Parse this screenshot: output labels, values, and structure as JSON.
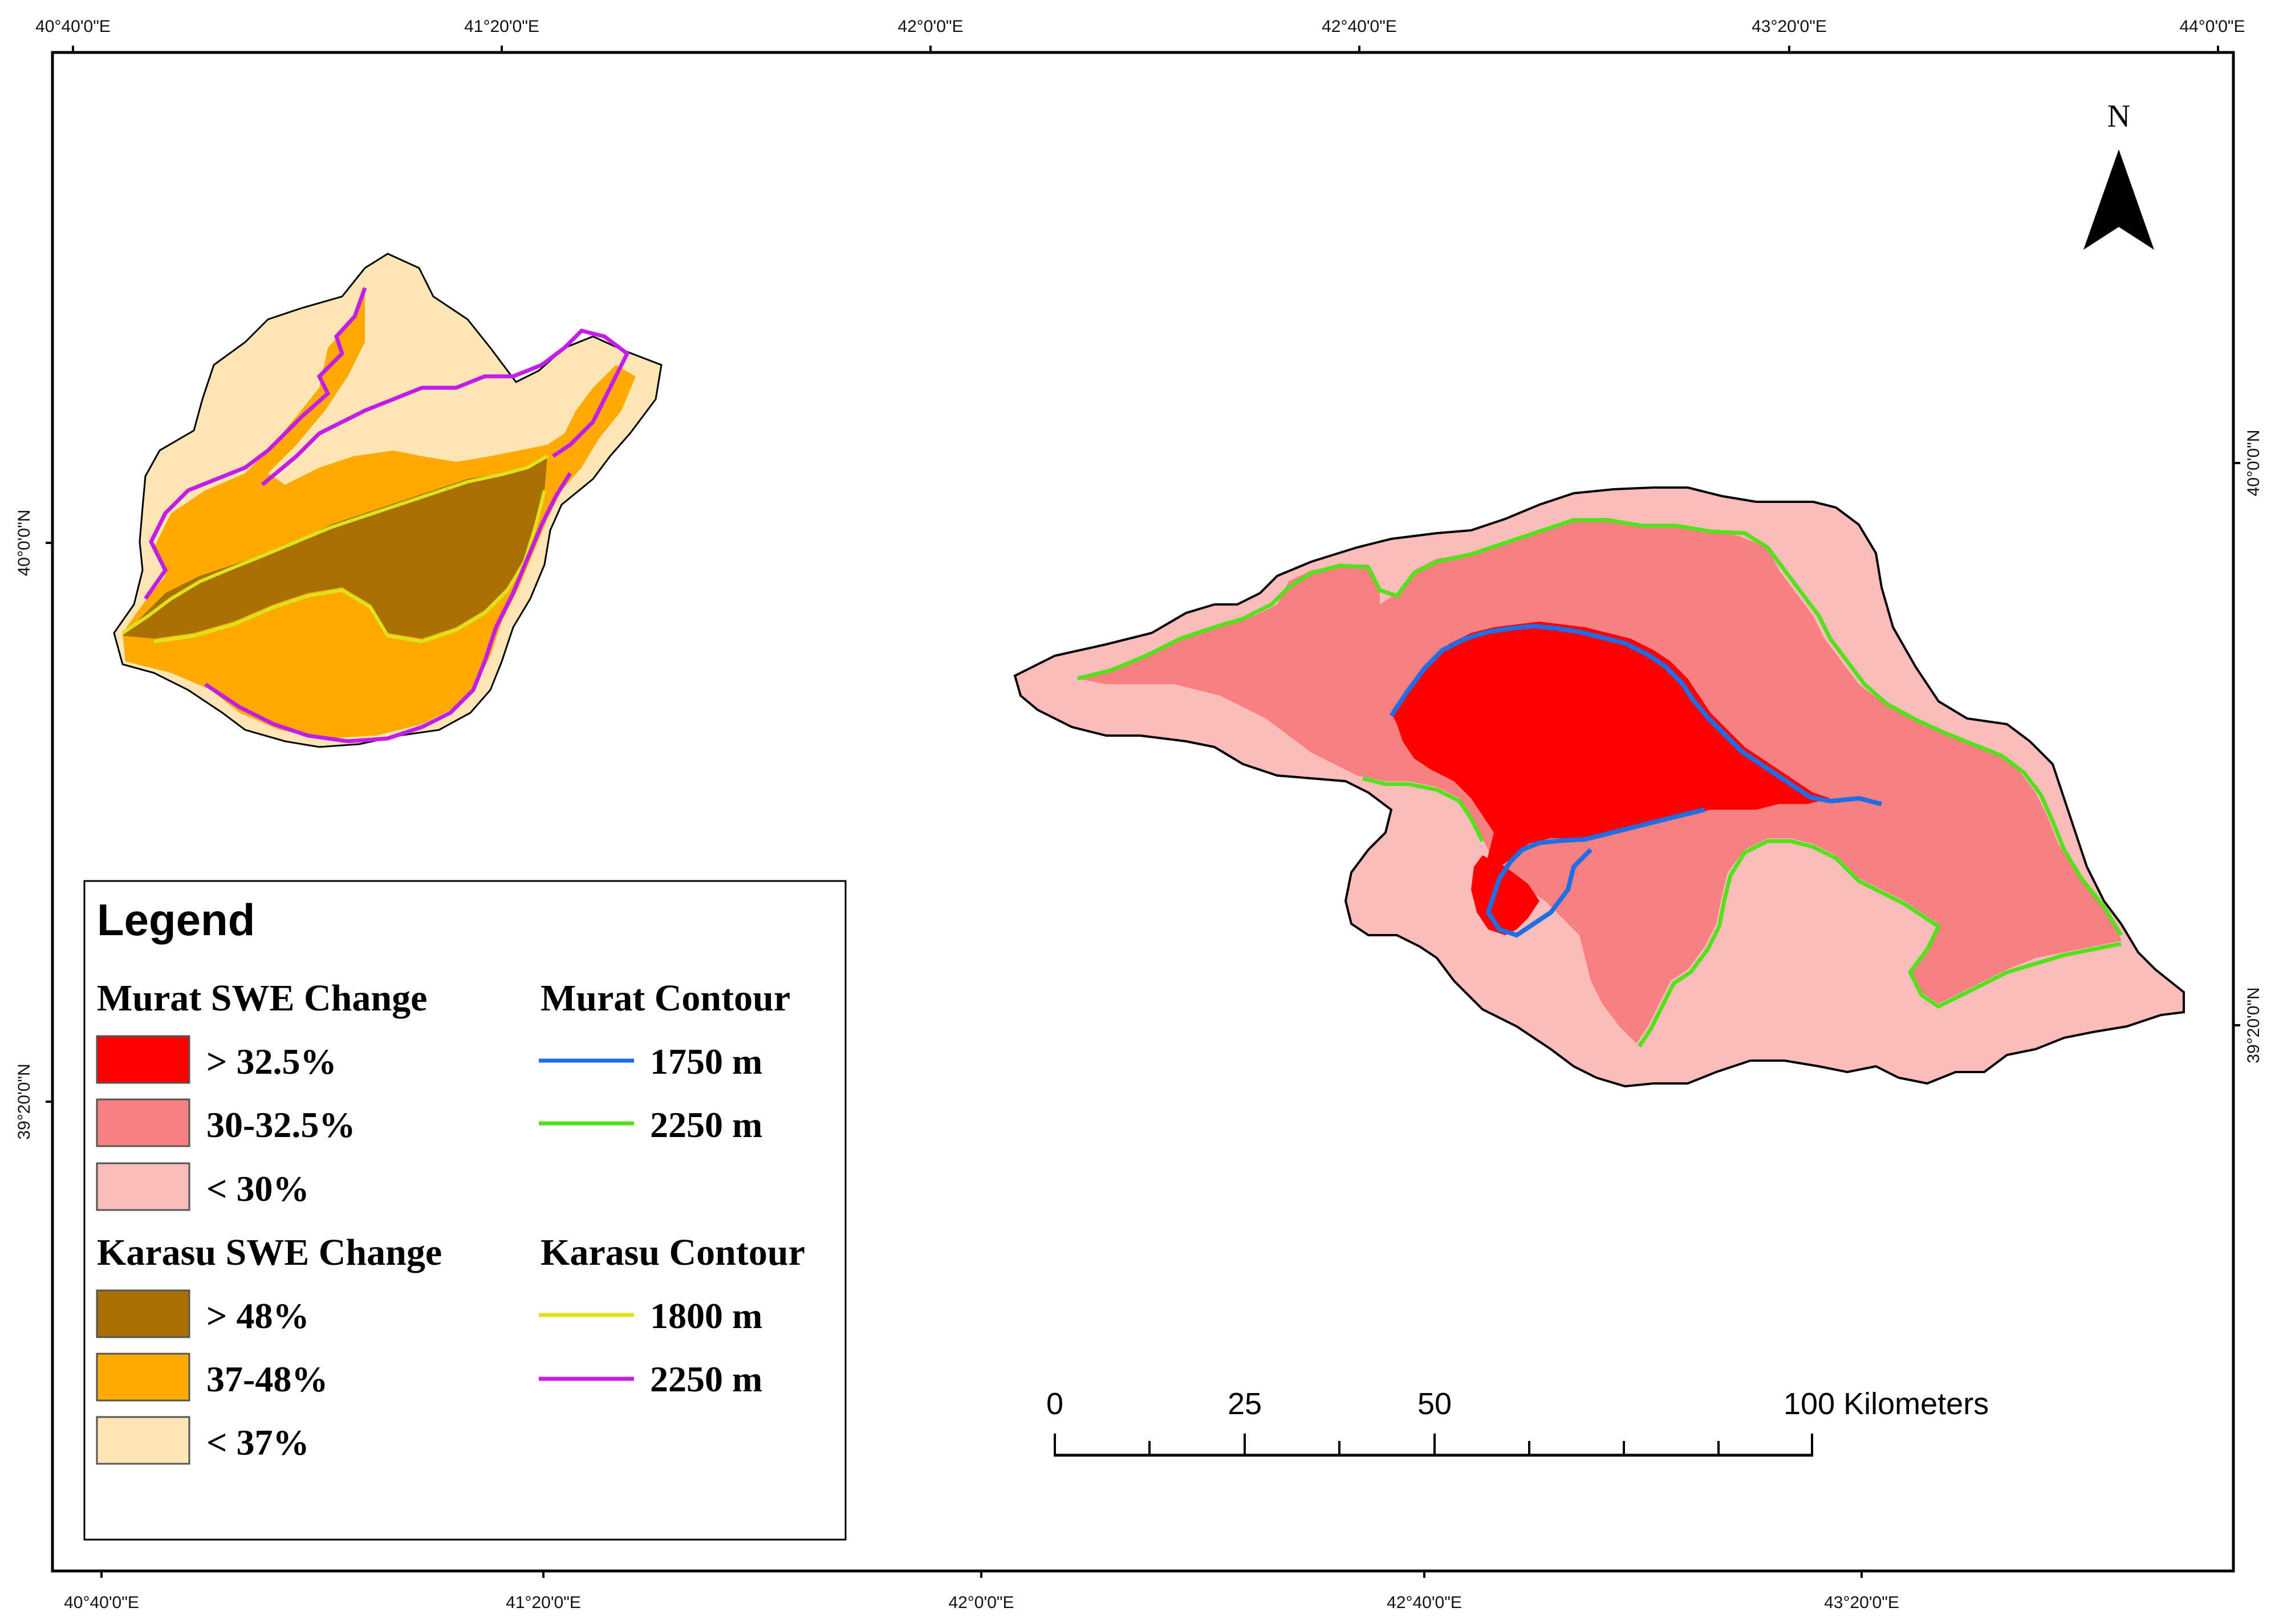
{
  "graticule": {
    "top_labels": [
      "40°40'0\"E",
      "41°20'0\"E",
      "42°0'0\"E",
      "42°40'0\"E",
      "43°20'0\"E",
      "44°0'0\"E"
    ],
    "bottom_labels": [
      "40°40'0\"E",
      "41°20'0\"E",
      "42°0'0\"E",
      "42°40'0\"E",
      "43°20'0\"E"
    ],
    "left_labels": [
      "40°0'0\"N",
      "39°20'0\"N"
    ],
    "right_labels": [
      "40°0'0\"N",
      "39°20'0\"N"
    ]
  },
  "north_arrow": {
    "label": "N"
  },
  "legend": {
    "title": "Legend",
    "murat_swe": {
      "heading": "Murat SWE Change",
      "items": [
        {
          "label": "> 32.5%",
          "color": "#ff0000"
        },
        {
          "label": "30-32.5%",
          "color": "#f88080"
        },
        {
          "label": "< 30%",
          "color": "#fbbcbc"
        }
      ]
    },
    "karasu_swe": {
      "heading": "Karasu SWE Change",
      "items": [
        {
          "label": "> 48%",
          "color": "#a87000"
        },
        {
          "label": "37-48%",
          "color": "#ffaa00"
        },
        {
          "label": "< 37%",
          "color": "#fde6b3"
        }
      ]
    },
    "murat_contour": {
      "heading": "Murat Contour",
      "items": [
        {
          "label": "1750 m",
          "color": "#1e6ee8"
        },
        {
          "label": "2250 m",
          "color": "#55e01c"
        }
      ]
    },
    "karasu_contour": {
      "heading": "Karasu Contour",
      "items": [
        {
          "label": "1800 m",
          "color": "#dde21c"
        },
        {
          "label": "2250 m",
          "color": "#c21ee8"
        }
      ]
    }
  },
  "scale_bar": {
    "labels": [
      "0",
      "25",
      "50",
      "100 Kilometers"
    ]
  }
}
